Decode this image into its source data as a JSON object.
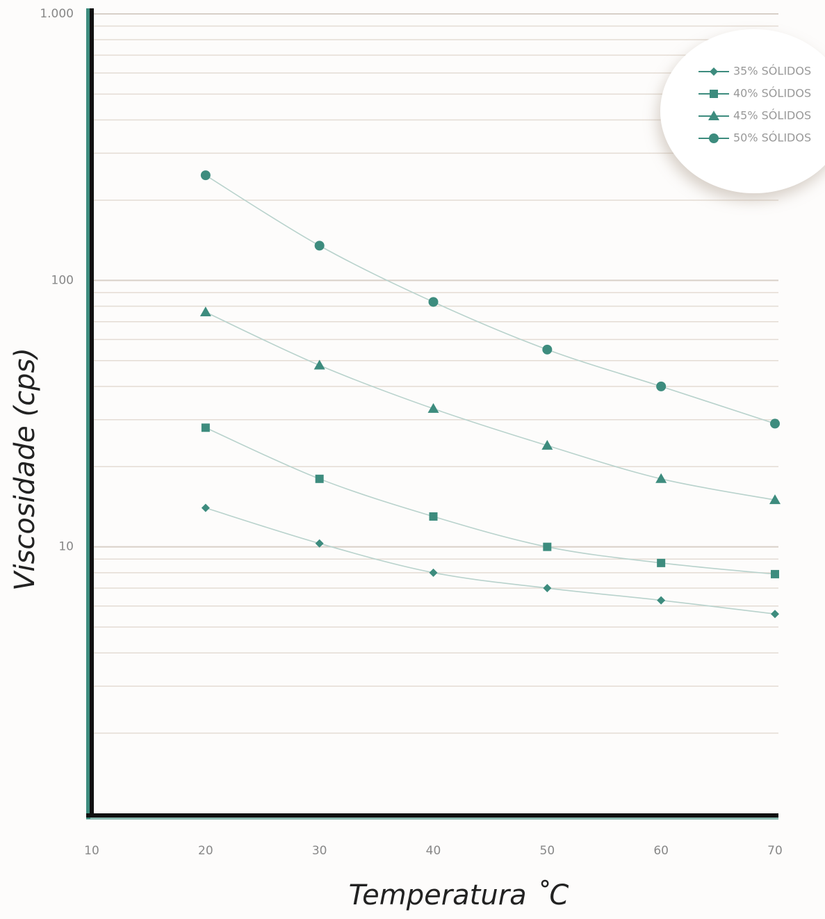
{
  "chart_data": {
    "type": "line",
    "xlabel": "Temperatura ˚C",
    "ylabel": "Viscosidade (cps)",
    "x": [
      20,
      30,
      40,
      50,
      60,
      70
    ],
    "series": [
      {
        "name": "35% SÓLIDOS",
        "color": "#3d8c7e",
        "marker": "diamond",
        "values": [
          14,
          10.3,
          8,
          7,
          6.3,
          5.6
        ]
      },
      {
        "name": "40% SÓLIDOS",
        "color": "#3d8c7e",
        "marker": "square",
        "values": [
          28,
          18,
          13,
          10,
          8.7,
          7.9
        ]
      },
      {
        "name": "45% SÓLIDOS",
        "color": "#3d8c7e",
        "marker": "triangle",
        "values": [
          76,
          48,
          33,
          24,
          18,
          15
        ]
      },
      {
        "name": "50% SÓLIDOS",
        "color": "#3d8c7e",
        "marker": "circle",
        "values": [
          248,
          135,
          83,
          55,
          40,
          29
        ]
      }
    ],
    "xlim": [
      10,
      70
    ],
    "xticks": [
      10,
      20,
      30,
      40,
      50,
      60,
      70
    ],
    "ylim": [
      1,
      1000
    ],
    "log_y": true,
    "yticks": [
      {
        "value": 1000,
        "label": "1.000"
      },
      100,
      10
    ],
    "yticks_minor": [
      2,
      3,
      4,
      5,
      6,
      7,
      8,
      9,
      20,
      30,
      40,
      50,
      60,
      70,
      80,
      90,
      200,
      300,
      400,
      500,
      600,
      700,
      800,
      900
    ],
    "grid": true,
    "legend": "upper right"
  }
}
